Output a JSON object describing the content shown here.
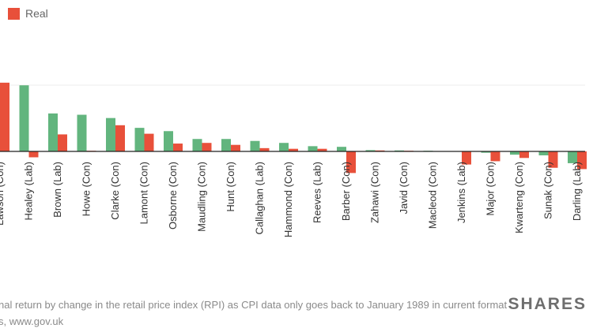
{
  "legend": {
    "real_label": "Real",
    "real_color": "#e8503a",
    "nominal_color": "#62b57e"
  },
  "footnote": {
    "line1": "nal return by change in the retail price index (RPI) as CPI data only goes back to January 1989 in current format",
    "line2": "s, www.gov.uk"
  },
  "brand": "SHARES",
  "chart_data": {
    "type": "bar",
    "categories": [
      "Lawson (Con)",
      "Healey (Lab)",
      "Brown (Lab)",
      "Howe (Con)",
      "Clarke (Con)",
      "Lamont (Con)",
      "Osborne (Con)",
      "Maudling (Con)",
      "Hunt (Con)",
      "Callaghan (Lab)",
      "Hammond (Con)",
      "Reeves (Lab)",
      "Barber (Con)",
      "Zahawi (Con)",
      "Javid (Con)",
      "Macleod (Con)",
      "Jenkins (Lab)",
      "Major (Con)",
      "Kwarteng (Con)",
      "Sunak (Con)",
      "Darling (Lab)"
    ],
    "series": [
      {
        "color": "#62b57e",
        "values": [
          null,
          101,
          58,
          56,
          51,
          36,
          31,
          19,
          19,
          16,
          13,
          8,
          7,
          2,
          1.5,
          1,
          0.5,
          -2,
          -5,
          -6,
          -18
        ]
      },
      {
        "color": "#e8503a",
        "values": [
          105,
          -9,
          26,
          1,
          40,
          27,
          12,
          13,
          10,
          5,
          4,
          4,
          -33,
          1.5,
          1,
          -0.5,
          -20,
          -15,
          -10,
          -25,
          -27
        ]
      }
    ],
    "grid": true
  }
}
